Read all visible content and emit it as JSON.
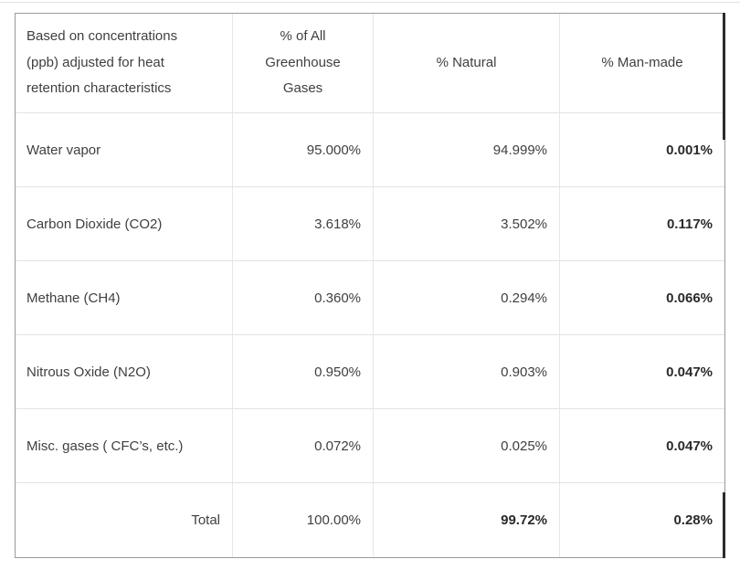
{
  "page": {
    "background": "#ffffff",
    "top_rule_color": "#e3e3e3"
  },
  "table": {
    "colors": {
      "outer_border": "#9a9a9a",
      "grid_lines": "#e2e2e2",
      "text": "#3f3f3f",
      "bold_text": "#2a2a2a",
      "dark_right_edge": "#2b2b2b"
    },
    "header": {
      "col1": "Based on concentrations\n(ppb) adjusted for heat\nretention characteristics",
      "col2": "% of All\nGreenhouse\nGases",
      "col3": "% Natural",
      "col4": "% Man-made"
    },
    "rows": [
      {
        "label": "Water vapor",
        "pct_all": "95.000%",
        "pct_natural": "94.999%",
        "pct_manmade": "0.001%"
      },
      {
        "label": "Carbon Dioxide (CO2)",
        "pct_all": "3.618%",
        "pct_natural": "3.502%",
        "pct_manmade": "0.117%"
      },
      {
        "label": "Methane (CH4)",
        "pct_all": "0.360%",
        "pct_natural": "0.294%",
        "pct_manmade": "0.066%"
      },
      {
        "label": "Nitrous Oxide (N2O)",
        "pct_all": "0.950%",
        "pct_natural": "0.903%",
        "pct_manmade": "0.047%"
      },
      {
        "label": "Misc. gases ( CFC’s, etc.)",
        "pct_all": "0.072%",
        "pct_natural": "0.025%",
        "pct_manmade": "0.047%"
      }
    ],
    "total": {
      "label": "Total",
      "pct_all": "100.00%",
      "pct_natural": "99.72%",
      "pct_manmade": "0.28%"
    }
  },
  "chart_data": {
    "type": "table",
    "title": "Based on concentrations (ppb) adjusted for heat retention characteristics",
    "columns": [
      "Based on concentrations (ppb) adjusted for heat retention characteristics",
      "% of All Greenhouse Gases",
      "% Natural",
      "% Man-made"
    ],
    "units": "%",
    "rows": [
      [
        "Water vapor",
        95.0,
        94.999,
        0.001
      ],
      [
        "Carbon Dioxide (CO2)",
        3.618,
        3.502,
        0.117
      ],
      [
        "Methane (CH4)",
        0.36,
        0.294,
        0.066
      ],
      [
        "Nitrous Oxide (N2O)",
        0.95,
        0.903,
        0.047
      ],
      [
        "Misc. gases ( CFC’s, etc.)",
        0.072,
        0.025,
        0.047
      ],
      [
        "Total",
        100.0,
        99.72,
        0.28
      ]
    ]
  }
}
